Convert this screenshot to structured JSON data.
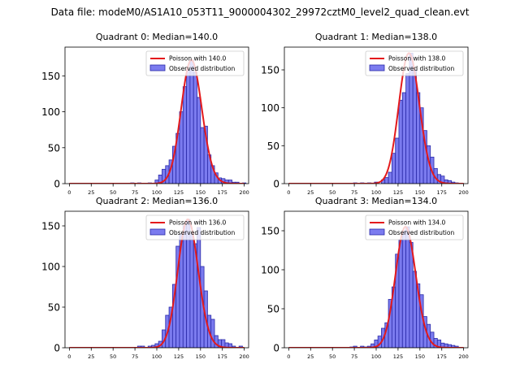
{
  "suptitle": "Data file: modeM0/AS1A10_053T11_9000004302_29972cztM0_level2_quad_clean.evt",
  "colors": {
    "bar_fill": "#7b7bef",
    "bar_edge": "#2a2aa8",
    "poisson_line": "#e41a1c"
  },
  "chart_data": [
    {
      "type": "bar",
      "title": "Quadrant 0: Median=140.0",
      "legend_position": "top-right",
      "legend": [
        "Poisson with 140.0",
        "Observed distribution"
      ],
      "poisson_mean": 140.0,
      "xlim": [
        -5,
        205
      ],
      "ylim": [
        0,
        190
      ],
      "xticks": [
        0,
        25,
        50,
        75,
        100,
        125,
        150,
        175,
        200
      ],
      "yticks": [
        0,
        50,
        100,
        150
      ],
      "bin_width": 4,
      "bins": [
        {
          "x": 70,
          "y": 1
        },
        {
          "x": 78,
          "y": 1
        },
        {
          "x": 90,
          "y": 1
        },
        {
          "x": 98,
          "y": 5
        },
        {
          "x": 102,
          "y": 12
        },
        {
          "x": 106,
          "y": 20
        },
        {
          "x": 110,
          "y": 25
        },
        {
          "x": 114,
          "y": 33
        },
        {
          "x": 118,
          "y": 52
        },
        {
          "x": 122,
          "y": 70
        },
        {
          "x": 126,
          "y": 100
        },
        {
          "x": 130,
          "y": 135
        },
        {
          "x": 134,
          "y": 158
        },
        {
          "x": 138,
          "y": 172
        },
        {
          "x": 142,
          "y": 155
        },
        {
          "x": 146,
          "y": 120
        },
        {
          "x": 150,
          "y": 78
        },
        {
          "x": 154,
          "y": 80
        },
        {
          "x": 158,
          "y": 40
        },
        {
          "x": 162,
          "y": 25
        },
        {
          "x": 166,
          "y": 15
        },
        {
          "x": 170,
          "y": 8
        },
        {
          "x": 174,
          "y": 7
        },
        {
          "x": 178,
          "y": 5
        },
        {
          "x": 182,
          "y": 5
        },
        {
          "x": 186,
          "y": 2
        },
        {
          "x": 190,
          "y": 2
        },
        {
          "x": 198,
          "y": 1
        }
      ]
    },
    {
      "type": "bar",
      "title": "Quadrant 1: Median=138.0",
      "legend_position": "top-right",
      "legend": [
        "Poisson with 138.0",
        "Observed distribution"
      ],
      "poisson_mean": 138.0,
      "xlim": [
        -5,
        205
      ],
      "ylim": [
        0,
        180
      ],
      "xticks": [
        0,
        25,
        50,
        75,
        100,
        125,
        150,
        175,
        200
      ],
      "yticks": [
        0,
        50,
        100,
        150
      ],
      "bin_width": 4,
      "bins": [
        {
          "x": 74,
          "y": 1
        },
        {
          "x": 82,
          "y": 1
        },
        {
          "x": 90,
          "y": 1
        },
        {
          "x": 98,
          "y": 2
        },
        {
          "x": 106,
          "y": 5
        },
        {
          "x": 110,
          "y": 8
        },
        {
          "x": 114,
          "y": 15
        },
        {
          "x": 118,
          "y": 40
        },
        {
          "x": 122,
          "y": 60
        },
        {
          "x": 126,
          "y": 110
        },
        {
          "x": 130,
          "y": 120
        },
        {
          "x": 134,
          "y": 145
        },
        {
          "x": 138,
          "y": 172
        },
        {
          "x": 142,
          "y": 150
        },
        {
          "x": 146,
          "y": 120
        },
        {
          "x": 150,
          "y": 100
        },
        {
          "x": 154,
          "y": 70
        },
        {
          "x": 158,
          "y": 50
        },
        {
          "x": 162,
          "y": 35
        },
        {
          "x": 166,
          "y": 20
        },
        {
          "x": 170,
          "y": 12
        },
        {
          "x": 174,
          "y": 10
        },
        {
          "x": 178,
          "y": 5
        },
        {
          "x": 182,
          "y": 4
        },
        {
          "x": 186,
          "y": 2
        },
        {
          "x": 190,
          "y": 1
        }
      ]
    },
    {
      "type": "bar",
      "title": "Quadrant 2: Median=136.0",
      "legend_position": "top-right",
      "legend": [
        "Poisson with 136.0",
        "Observed distribution"
      ],
      "poisson_mean": 136.0,
      "xlim": [
        -5,
        205
      ],
      "ylim": [
        0,
        168
      ],
      "xticks": [
        0,
        25,
        50,
        75,
        100,
        125,
        150,
        175,
        200
      ],
      "yticks": [
        0,
        50,
        100,
        150
      ],
      "bin_width": 4,
      "bins": [
        {
          "x": 78,
          "y": 2
        },
        {
          "x": 82,
          "y": 2
        },
        {
          "x": 90,
          "y": 2
        },
        {
          "x": 94,
          "y": 3
        },
        {
          "x": 98,
          "y": 5
        },
        {
          "x": 102,
          "y": 8
        },
        {
          "x": 106,
          "y": 22
        },
        {
          "x": 110,
          "y": 40
        },
        {
          "x": 114,
          "y": 50
        },
        {
          "x": 118,
          "y": 78
        },
        {
          "x": 122,
          "y": 125
        },
        {
          "x": 126,
          "y": 140
        },
        {
          "x": 130,
          "y": 150
        },
        {
          "x": 134,
          "y": 158
        },
        {
          "x": 138,
          "y": 140
        },
        {
          "x": 142,
          "y": 128
        },
        {
          "x": 146,
          "y": 148
        },
        {
          "x": 150,
          "y": 100
        },
        {
          "x": 154,
          "y": 70
        },
        {
          "x": 158,
          "y": 40
        },
        {
          "x": 162,
          "y": 35
        },
        {
          "x": 166,
          "y": 15
        },
        {
          "x": 170,
          "y": 10
        },
        {
          "x": 174,
          "y": 10
        },
        {
          "x": 178,
          "y": 6
        },
        {
          "x": 182,
          "y": 5
        },
        {
          "x": 186,
          "y": 2
        },
        {
          "x": 194,
          "y": 2
        }
      ]
    },
    {
      "type": "bar",
      "title": "Quadrant 3: Median=134.0",
      "legend_position": "top-right",
      "legend": [
        "Poisson with 134.0",
        "Observed distribution"
      ],
      "poisson_mean": 134.0,
      "xlim": [
        -5,
        205
      ],
      "ylim": [
        0,
        175
      ],
      "xticks": [
        0,
        25,
        50,
        75,
        100,
        125,
        150,
        175,
        200
      ],
      "yticks": [
        0,
        50,
        100,
        150
      ],
      "bin_width": 4,
      "bins": [
        {
          "x": 70,
          "y": 1
        },
        {
          "x": 74,
          "y": 2
        },
        {
          "x": 82,
          "y": 2
        },
        {
          "x": 86,
          "y": 1
        },
        {
          "x": 90,
          "y": 2
        },
        {
          "x": 94,
          "y": 5
        },
        {
          "x": 98,
          "y": 10
        },
        {
          "x": 102,
          "y": 15
        },
        {
          "x": 106,
          "y": 25
        },
        {
          "x": 110,
          "y": 32
        },
        {
          "x": 114,
          "y": 62
        },
        {
          "x": 118,
          "y": 78
        },
        {
          "x": 122,
          "y": 120
        },
        {
          "x": 126,
          "y": 138
        },
        {
          "x": 130,
          "y": 150
        },
        {
          "x": 134,
          "y": 155
        },
        {
          "x": 138,
          "y": 135
        },
        {
          "x": 142,
          "y": 98
        },
        {
          "x": 146,
          "y": 82
        },
        {
          "x": 150,
          "y": 68
        },
        {
          "x": 154,
          "y": 40
        },
        {
          "x": 158,
          "y": 30
        },
        {
          "x": 162,
          "y": 20
        },
        {
          "x": 166,
          "y": 12
        },
        {
          "x": 170,
          "y": 10
        },
        {
          "x": 174,
          "y": 6
        },
        {
          "x": 178,
          "y": 5
        },
        {
          "x": 182,
          "y": 4
        },
        {
          "x": 186,
          "y": 3
        },
        {
          "x": 190,
          "y": 2
        }
      ]
    }
  ]
}
